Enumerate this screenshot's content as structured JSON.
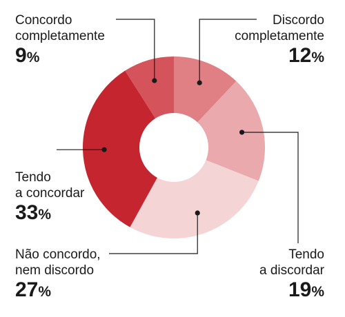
{
  "chart_data": {
    "type": "pie",
    "donut": true,
    "categories": [
      "Discordo completamente",
      "Tendo a discordar",
      "Não concordo, nem discordo",
      "Tendo a concordar",
      "Concordo completamente"
    ],
    "labels": [
      "Discordo\ncompletamente",
      "Tendo\na discordar",
      "Não concordo,\nnem discordo",
      "Tendo\na concordar",
      "Concordo\ncompletamente"
    ],
    "values": [
      12,
      19,
      27,
      33,
      9
    ],
    "value_labels": [
      "12",
      "19",
      "27",
      "33",
      "9"
    ],
    "unit": "%",
    "colors": [
      "#e07f84",
      "#eaa9ac",
      "#f5d4d6",
      "#c4252f",
      "#d5545b"
    ],
    "start_angle_deg": 0,
    "direction": "clockwise",
    "title": "",
    "legend": "none"
  }
}
